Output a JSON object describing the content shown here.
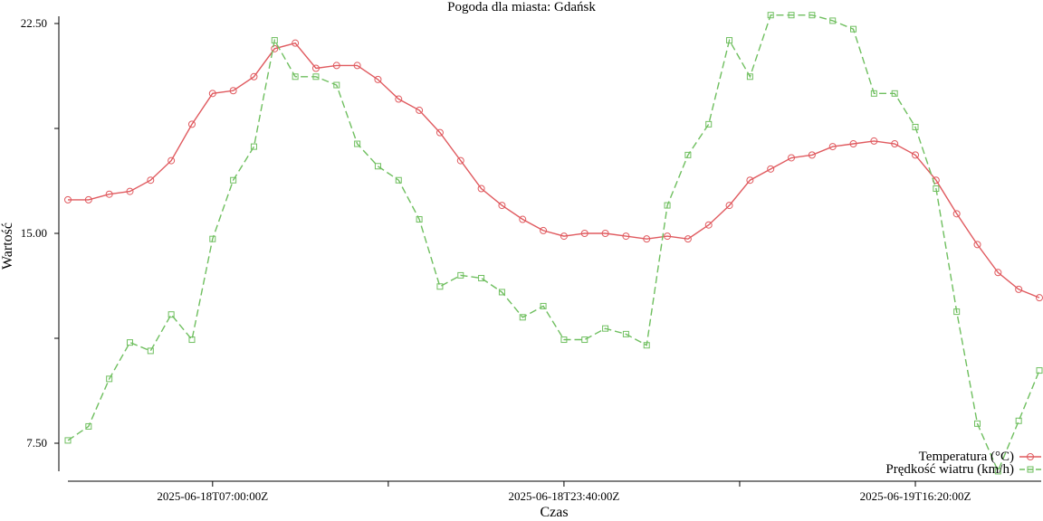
{
  "chart_data": {
    "type": "line",
    "title": "Pogoda dla miasta: Gdańsk",
    "xlabel": "Czas",
    "ylabel": "Wartość",
    "x_tick_labels": [
      "2025-06-18T07:00:00Z",
      "2025-06-18T23:40:00Z",
      "2025-06-19T16:20:00Z"
    ],
    "y_tick_labels": [
      "7.50",
      "15.00",
      "22.50"
    ],
    "y_ticks": [
      7.5,
      11.25,
      15.0,
      18.75,
      22.5
    ],
    "ylim": [
      7.0,
      23.5
    ],
    "grid": false,
    "legend_position": "bottom-right",
    "series": [
      {
        "name": "Temperatura (°C)",
        "color": "#e05a5f",
        "dash": "solid",
        "marker": "circle",
        "values": [
          16.2,
          16.2,
          16.4,
          16.5,
          16.9,
          17.6,
          18.9,
          20.0,
          20.1,
          20.6,
          21.6,
          21.8,
          20.9,
          21.0,
          21.0,
          20.5,
          19.8,
          19.4,
          18.6,
          17.6,
          16.6,
          16.0,
          15.5,
          15.1,
          14.9,
          15.0,
          15.0,
          14.9,
          14.8,
          14.9,
          14.8,
          15.3,
          16.0,
          16.9,
          17.3,
          17.7,
          17.8,
          18.1,
          18.2,
          18.3,
          18.2,
          17.8,
          16.9,
          15.7,
          14.6,
          13.6,
          13.0,
          12.7
        ]
      },
      {
        "name": "Prędkość wiatru (km/h)",
        "color": "#6fbf5f",
        "dash": "dashed",
        "marker": "square",
        "values": [
          7.6,
          8.1,
          9.8,
          11.1,
          10.8,
          12.1,
          11.2,
          14.8,
          16.9,
          18.1,
          21.9,
          20.6,
          20.6,
          20.3,
          18.2,
          17.4,
          16.9,
          15.5,
          13.1,
          13.5,
          13.4,
          12.9,
          12.0,
          12.4,
          11.2,
          11.2,
          11.6,
          11.4,
          11.0,
          16.0,
          17.8,
          18.9,
          21.9,
          20.6,
          22.8,
          22.8,
          22.8,
          22.6,
          22.3,
          20.0,
          20.0,
          18.8,
          16.6,
          12.2,
          8.2,
          6.5,
          8.3,
          10.1
        ]
      }
    ]
  }
}
